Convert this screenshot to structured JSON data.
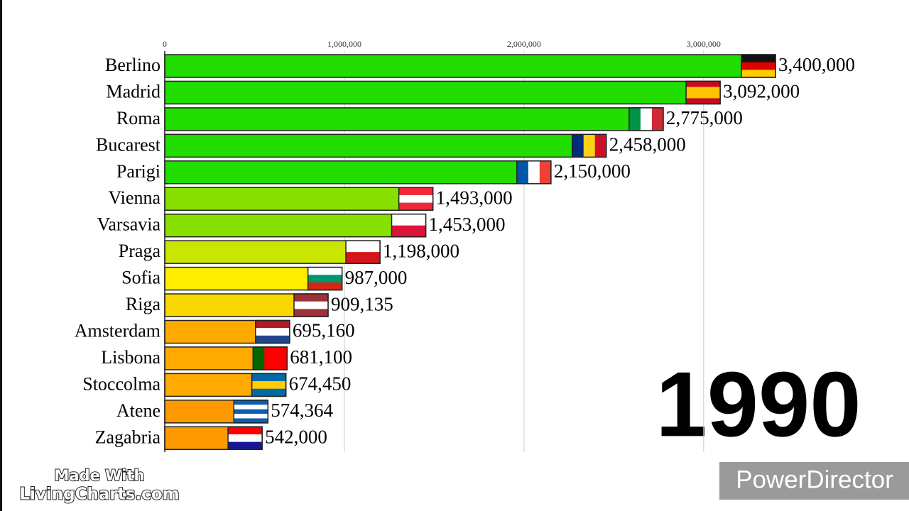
{
  "chart_data": {
    "type": "bar",
    "orientation": "horizontal",
    "categories": [
      "Berlino",
      "Madrid",
      "Roma",
      "Bucarest",
      "Parigi",
      "Vienna",
      "Varsavia",
      "Praga",
      "Sofia",
      "Riga",
      "Amsterdam",
      "Lisbona",
      "Stoccolma",
      "Atene",
      "Zagabria"
    ],
    "values": [
      3400000,
      3092000,
      2775000,
      2458000,
      2150000,
      1493000,
      1453000,
      1198000,
      987000,
      909135,
      695160,
      681100,
      674450,
      574364,
      542000
    ],
    "value_labels": [
      "3,400,000",
      "3,092,000",
      "2,775,000",
      "2,458,000",
      "2,150,000",
      "1,493,000",
      "1,453,000",
      "1,198,000",
      "987,000",
      "909,135",
      "695,160",
      "681,100",
      "674,450",
      "574,364",
      "542,000"
    ],
    "colors": [
      "#22dd00",
      "#22dd00",
      "#22dd00",
      "#22dd00",
      "#22dd00",
      "#88e000",
      "#88e000",
      "#c8e600",
      "#ffee00",
      "#f8d800",
      "#ffaa00",
      "#ffaa00",
      "#ffaa00",
      "#ff9900",
      "#ff9900"
    ],
    "flags": [
      {
        "dir": "h",
        "colors": [
          "#111111",
          "#dd0000",
          "#ffcc00"
        ]
      },
      {
        "dir": "h",
        "colors": [
          "#c60b1e",
          "#ffc400",
          "#ffc400",
          "#c60b1e"
        ]
      },
      {
        "dir": "v",
        "colors": [
          "#009246",
          "#ffffff",
          "#ce2b37"
        ]
      },
      {
        "dir": "v",
        "colors": [
          "#002b7f",
          "#fcd116",
          "#ce1126"
        ]
      },
      {
        "dir": "v",
        "colors": [
          "#0055a4",
          "#ffffff",
          "#ef4135"
        ]
      },
      {
        "dir": "h",
        "colors": [
          "#ed2939",
          "#ffffff",
          "#ed2939"
        ]
      },
      {
        "dir": "h",
        "colors": [
          "#ffffff",
          "#dc143c"
        ]
      },
      {
        "dir": "h",
        "colors": [
          "#ffffff",
          "#d7141a"
        ]
      },
      {
        "dir": "h",
        "colors": [
          "#ffffff",
          "#00966e",
          "#d62612"
        ]
      },
      {
        "dir": "h",
        "colors": [
          "#9e3039",
          "#ffffff",
          "#9e3039"
        ]
      },
      {
        "dir": "h",
        "colors": [
          "#ae1c28",
          "#ffffff",
          "#21468b"
        ]
      },
      {
        "dir": "v",
        "colors": [
          "#006600",
          "#ff0000",
          "#ff0000"
        ]
      },
      {
        "dir": "h",
        "colors": [
          "#006aa7",
          "#fecc00",
          "#006aa7"
        ]
      },
      {
        "dir": "h",
        "colors": [
          "#0d5eaf",
          "#ffffff",
          "#0d5eaf",
          "#ffffff",
          "#0d5eaf"
        ]
      },
      {
        "dir": "h",
        "colors": [
          "#ff0000",
          "#ffffff",
          "#171796"
        ]
      }
    ],
    "xlim": [
      0,
      3570000
    ],
    "xticks": [
      0,
      {
        "value": 1000000,
        "label": "1,000,000"
      },
      {
        "value": 2000000,
        "label": "2,000,000"
      },
      {
        "value": 3000000,
        "label": "3,000,000"
      }
    ],
    "grid": true,
    "year": "1990"
  },
  "watermarks": {
    "made_with": "Made With",
    "site": "LivingCharts.com",
    "editor": "PowerDirector"
  }
}
